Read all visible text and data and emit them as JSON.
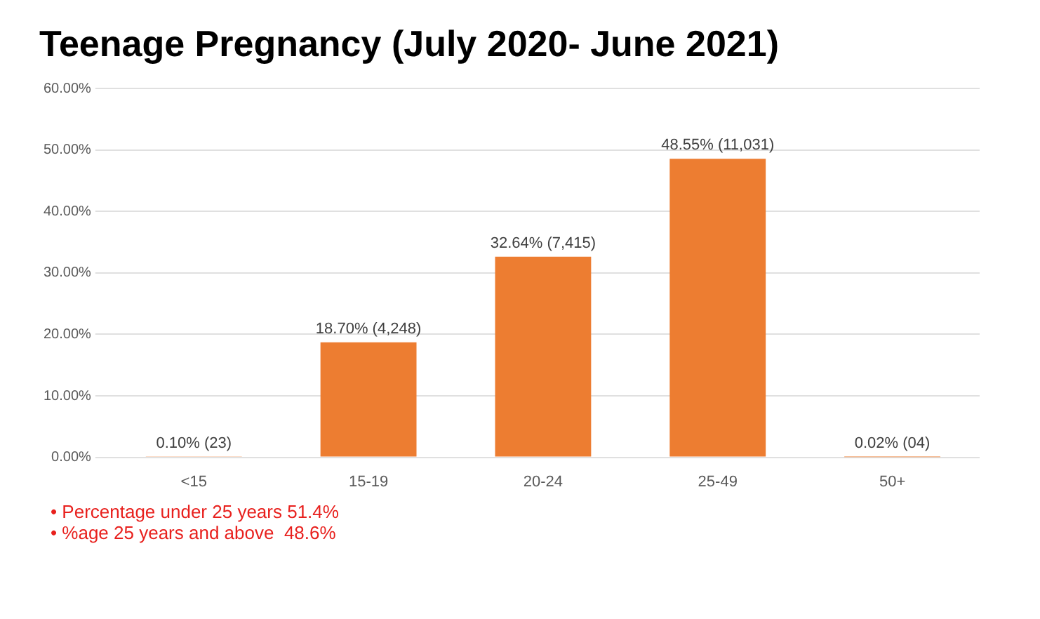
{
  "chart_data": {
    "type": "bar",
    "title": "Teenage Pregnancy (July 2020- June 2021)",
    "categories": [
      "<15",
      "15-19",
      "20-24",
      "25-49",
      "50+"
    ],
    "values": [
      0.1,
      18.7,
      32.64,
      48.55,
      0.02
    ],
    "value_labels": [
      "0.10% (23)",
      "18.70% (4,248)",
      "32.64% (7,415)",
      "48.55% (11,031)",
      "0.02% (04)"
    ],
    "color": "#ed7d31",
    "ylim": [
      0,
      60
    ],
    "yticks": [
      {
        "value": 0,
        "label": "0.00%"
      },
      {
        "value": 10,
        "label": "10.00%"
      },
      {
        "value": 20,
        "label": "20.00%"
      },
      {
        "value": 30,
        "label": "30.00%"
      },
      {
        "value": 40,
        "label": "40.00%"
      },
      {
        "value": 50,
        "label": "50.00%"
      },
      {
        "value": 60,
        "label": "60.00%"
      }
    ],
    "grid": "y",
    "annotations": [
      "• Percentage under 25 years 51.4%",
      "• %age 25 years and above  48.6%"
    ]
  }
}
